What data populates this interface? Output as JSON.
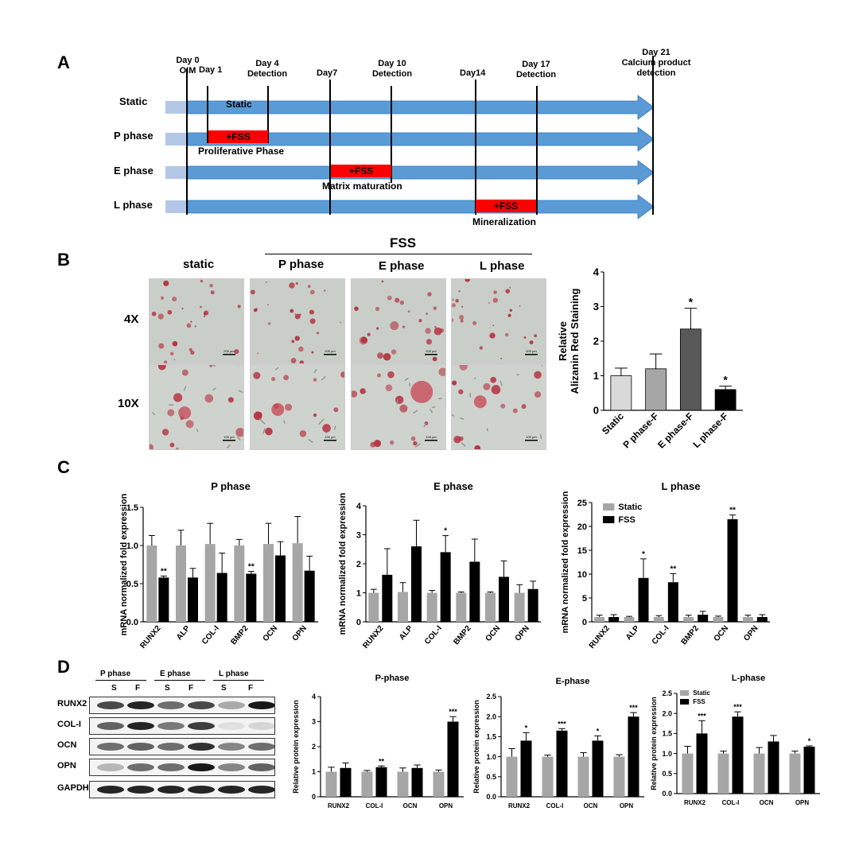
{
  "panels": {
    "a": "A",
    "b": "B",
    "c": "C",
    "d": "D"
  },
  "timeline": {
    "day_labels": [
      {
        "l1": "Day 0",
        "l2": "OIM"
      },
      {
        "l1": "Day 1",
        "l2": ""
      },
      {
        "l1": "Day 4",
        "l2": "Detection"
      },
      {
        "l1": "Day7",
        "l2": ""
      },
      {
        "l1": "Day 10",
        "l2": "Detection"
      },
      {
        "l1": "Day14",
        "l2": ""
      },
      {
        "l1": "Day 17",
        "l2": "Detection"
      },
      {
        "l1": "Day 21",
        "l2": "Calcium product",
        "l3": "detection"
      }
    ],
    "rows": [
      {
        "label": "Static",
        "inner": "Static",
        "caption": ""
      },
      {
        "label": "P phase",
        "inner": "+FSS",
        "caption": "Proliferative Phase"
      },
      {
        "label": "E phase",
        "inner": "+FSS",
        "caption": "Matrix maturation"
      },
      {
        "label": "L phase",
        "inner": "+FSS",
        "caption": "Mineralization"
      }
    ],
    "colors": {
      "arrow": "#5b9bd5",
      "arrow_light": "#b4c7e7",
      "fss": "#ff0000"
    }
  },
  "panel_b": {
    "fss_header": "FSS",
    "columns": [
      "static",
      "P phase",
      "E phase",
      "L phase"
    ],
    "rows": [
      "4X",
      "10X"
    ],
    "scale_bars": [
      "200 μm",
      "100 μm"
    ]
  },
  "chart_data": [
    {
      "id": "alizarin",
      "type": "bar",
      "title": "",
      "ylabel": "Relative\nAlizanin Red Staining",
      "categories": [
        "Static",
        "P phase-F",
        "E phase-F",
        "L phase-F"
      ],
      "values": [
        1.0,
        1.2,
        2.35,
        0.6
      ],
      "errors": [
        0.22,
        0.43,
        0.6,
        0.1
      ],
      "sig": [
        "",
        "",
        "*",
        "*"
      ],
      "colors": [
        "#d9d9d9",
        "#a6a6a6",
        "#595959",
        "#000000"
      ],
      "ylim": [
        0,
        4
      ],
      "yticks": [
        0,
        1,
        2,
        3,
        4
      ]
    },
    {
      "id": "c-p",
      "type": "bar",
      "title": "P phase",
      "ylabel": "mRNA normalized fold expression",
      "categories": [
        "RUNX2",
        "ALP",
        "COL-I",
        "BMP2",
        "OCN",
        "OPN"
      ],
      "series": [
        {
          "name": "Static",
          "values": [
            1.0,
            1.0,
            1.02,
            1.0,
            1.02,
            1.03
          ],
          "errors": [
            0.13,
            0.2,
            0.27,
            0.08,
            0.27,
            0.35
          ]
        },
        {
          "name": "FSS",
          "values": [
            0.58,
            0.58,
            0.64,
            0.63,
            0.87,
            0.67
          ],
          "errors": [
            0.02,
            0.12,
            0.26,
            0.03,
            0.18,
            0.19
          ]
        }
      ],
      "sig": [
        "**",
        "",
        "",
        "**",
        "",
        ""
      ],
      "ylim": [
        0,
        1.5
      ],
      "yticks": [
        "0.0",
        "0.5",
        "1.0",
        "1.5"
      ]
    },
    {
      "id": "c-e",
      "type": "bar",
      "title": "E phase",
      "ylabel": "mRNA normalized fold expression",
      "categories": [
        "RUNX2",
        "ALP",
        "COL-I",
        "BMP2",
        "OCN",
        "OPN"
      ],
      "series": [
        {
          "name": "Static",
          "values": [
            1.0,
            1.03,
            1.0,
            1.0,
            1.0,
            1.0
          ],
          "errors": [
            0.12,
            0.32,
            0.08,
            0.03,
            0.03,
            0.28
          ]
        },
        {
          "name": "FSS",
          "values": [
            1.62,
            2.6,
            2.4,
            2.07,
            1.55,
            1.13
          ],
          "errors": [
            0.9,
            0.9,
            0.57,
            0.78,
            0.55,
            0.27
          ]
        }
      ],
      "sig": [
        "",
        "",
        "*",
        "",
        "",
        ""
      ],
      "ylim": [
        0,
        4
      ],
      "yticks": [
        "0",
        "1",
        "2",
        "3",
        "4"
      ]
    },
    {
      "id": "c-l",
      "type": "bar",
      "title": "L phase",
      "ylabel": "mRNA normalized fold expression",
      "categories": [
        "RUNX2",
        "ALP",
        "COL-I",
        "BMP2",
        "OCN",
        "OPN"
      ],
      "series": [
        {
          "name": "Static",
          "values": [
            1.0,
            1.0,
            1.0,
            1.0,
            1.0,
            1.0
          ],
          "errors": [
            0.4,
            0.15,
            0.3,
            0.4,
            0.2,
            0.4
          ]
        },
        {
          "name": "FSS",
          "values": [
            1.0,
            9.2,
            8.3,
            1.5,
            21.5,
            1.0
          ],
          "errors": [
            0.5,
            4.0,
            1.8,
            0.7,
            0.9,
            0.5
          ]
        }
      ],
      "sig": [
        "",
        "*",
        "**",
        "",
        "**",
        ""
      ],
      "legend": [
        "Static",
        "FSS"
      ],
      "ylim": [
        0,
        25
      ],
      "yticks": [
        "0",
        "5",
        "10",
        "15",
        "20",
        "25"
      ]
    },
    {
      "id": "d-p",
      "type": "bar",
      "title": "P-phase",
      "ylabel": "Relative protein expression",
      "categories": [
        "RUNX2",
        "COL-I",
        "OCN",
        "OPN"
      ],
      "series": [
        {
          "name": "Static",
          "values": [
            1.0,
            1.0,
            1.0,
            1.0
          ],
          "errors": [
            0.18,
            0.05,
            0.15,
            0.07
          ]
        },
        {
          "name": "FSS",
          "values": [
            1.15,
            1.18,
            1.15,
            3.0
          ],
          "errors": [
            0.2,
            0.05,
            0.12,
            0.2
          ]
        }
      ],
      "sig": [
        "",
        "**",
        "",
        "***"
      ],
      "ylim": [
        0,
        4
      ],
      "yticks": [
        "0",
        "1",
        "2",
        "3",
        "4"
      ]
    },
    {
      "id": "d-e",
      "type": "bar",
      "title": "E-phase",
      "ylabel": "Relative protein expression",
      "categories": [
        "RUNX2",
        "COL-I",
        "OCN",
        "OPN"
      ],
      "series": [
        {
          "name": "Static",
          "values": [
            1.0,
            1.0,
            1.0,
            1.0
          ],
          "errors": [
            0.2,
            0.04,
            0.1,
            0.05
          ]
        },
        {
          "name": "FSS",
          "values": [
            1.4,
            1.65,
            1.4,
            2.0
          ],
          "errors": [
            0.2,
            0.05,
            0.12,
            0.1
          ]
        }
      ],
      "sig": [
        "*",
        "***",
        "*",
        "***"
      ],
      "ylim": [
        0,
        2.5
      ],
      "yticks": [
        "0.0",
        "0.5",
        "1.0",
        "1.5",
        "2.0",
        "2.5"
      ]
    },
    {
      "id": "d-l",
      "type": "bar",
      "title": "L-phase",
      "ylabel": "Relative protein expression",
      "categories": [
        "RUNX2",
        "COL-I",
        "OCN",
        "OPN"
      ],
      "series": [
        {
          "name": "Static",
          "values": [
            1.0,
            1.0,
            1.0,
            1.0
          ],
          "errors": [
            0.18,
            0.06,
            0.15,
            0.06
          ]
        },
        {
          "name": "FSS",
          "values": [
            1.5,
            1.92,
            1.3,
            1.17
          ],
          "errors": [
            0.32,
            0.12,
            0.15,
            0.02
          ]
        }
      ],
      "sig": [
        "***",
        "***",
        "",
        "*"
      ],
      "legend": [
        "Static",
        "FSS"
      ],
      "ylim": [
        0,
        2.5
      ],
      "yticks": [
        "0.0",
        "0.5",
        "1.0",
        "1.5",
        "2.0",
        "2.5"
      ]
    }
  ],
  "panel_d_blot": {
    "phases": [
      "P phase",
      "E phase",
      "L phase"
    ],
    "lanes": [
      "S",
      "F",
      "S",
      "F",
      "S",
      "F"
    ],
    "proteins": [
      "RUNX2",
      "COL-I",
      "OCN",
      "OPN",
      "GAPDH"
    ]
  },
  "colors": {
    "static": "#a6a6a6",
    "fss": "#000000"
  }
}
